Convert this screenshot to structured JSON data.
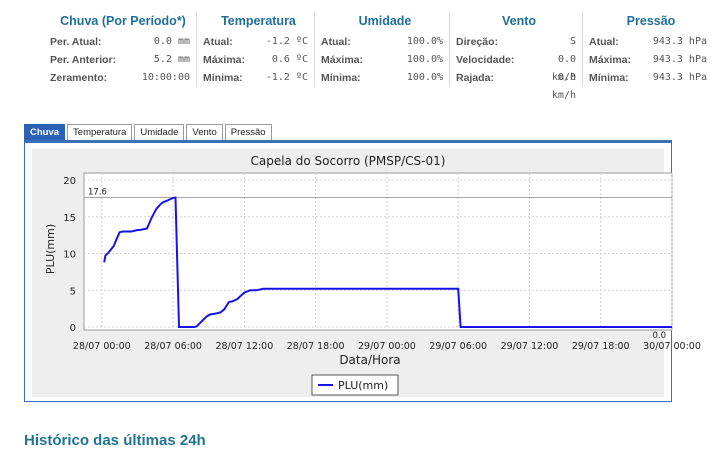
{
  "stats": [
    {
      "title": "Chuva (Por Período*)",
      "rows": [
        {
          "label": "Per. Atual:",
          "value": "0.0 mm"
        },
        {
          "label": "Per. Anterior:",
          "value": "5.2 mm"
        },
        {
          "label": "Zeramento:",
          "value": "10:00:00"
        }
      ]
    },
    {
      "title": "Temperatura",
      "rows": [
        {
          "label": "Atual:",
          "value": "-1.2 ºC"
        },
        {
          "label": "Máxima:",
          "value": "0.6 ºC"
        },
        {
          "label": "Mínima:",
          "value": "-1.2 ºC"
        }
      ]
    },
    {
      "title": "Umidade",
      "rows": [
        {
          "label": "Atual:",
          "value": "100.0%"
        },
        {
          "label": "Máxima:",
          "value": "100.0%"
        },
        {
          "label": "Mínima:",
          "value": "100.0%"
        }
      ]
    },
    {
      "title": "Vento",
      "rows": [
        {
          "label": "Direção:",
          "value": "S"
        },
        {
          "label": "Velocidade:",
          "value": "0.0 km/h"
        },
        {
          "label": "Rajada:",
          "value": "0.0 km/h"
        }
      ]
    },
    {
      "title": "Pressão",
      "rows": [
        {
          "label": "Atual:",
          "value": "943.3 hPa"
        },
        {
          "label": "Máxima:",
          "value": "943.3 hPa"
        },
        {
          "label": "Mínima:",
          "value": "943.3 hPa"
        }
      ]
    }
  ],
  "tabs": [
    "Chuva",
    "Temperatura",
    "Umidade",
    "Vento",
    "Pressão"
  ],
  "active_tab": "Chuva",
  "colors": {
    "accent": "#2a63b5",
    "series": "#1414e6",
    "heading": "#1f7590"
  },
  "chart_data": {
    "type": "line",
    "title": "Capela do Socorro (PMSP/CS-01)",
    "xlabel": "Data/Hora",
    "ylabel": "PLU(mm)",
    "ylim": [
      0,
      20
    ],
    "yticks": [
      0,
      5,
      10,
      15,
      20
    ],
    "xticks": [
      "28/07 00:00",
      "28/07 06:00",
      "28/07 12:00",
      "28/07 18:00",
      "29/07 00:00",
      "29/07 06:00",
      "29/07 12:00",
      "29/07 18:00",
      "30/07 00:00"
    ],
    "xlim_hours": [
      -1.5,
      48
    ],
    "annotations": [
      {
        "label": "17.6",
        "y": 17.6
      },
      {
        "label": "0.0",
        "y": 0
      }
    ],
    "legend": "bottom-center",
    "grid": true,
    "series": [
      {
        "name": "PLU(mm)",
        "x_hours": [
          0.2,
          0.3,
          0.6,
          1.0,
          1.2,
          1.5,
          1.8,
          2.0,
          2.5,
          3.0,
          3.2,
          3.8,
          4.2,
          4.6,
          5.0,
          5.2,
          5.5,
          5.9,
          6.1,
          6.2,
          6.5,
          7.5,
          7.8,
          8.0,
          8.3,
          8.8,
          9.1,
          9.5,
          10.0,
          10.3,
          10.7,
          11.0,
          11.4,
          11.6,
          12.0,
          12.5,
          13.0,
          13.6,
          14.5,
          30.0,
          30.2,
          31.0,
          40.0,
          48.0
        ],
        "values": [
          8.8,
          9.7,
          10.2,
          11.0,
          11.8,
          12.9,
          13.0,
          13.0,
          13.0,
          13.2,
          13.2,
          13.4,
          14.9,
          16.1,
          16.8,
          17.0,
          17.2,
          17.5,
          17.6,
          17.6,
          0.0,
          0.0,
          0.0,
          0.1,
          0.6,
          1.4,
          1.7,
          1.8,
          2.0,
          2.4,
          3.4,
          3.5,
          3.8,
          4.1,
          4.7,
          5.0,
          5.0,
          5.2,
          5.2,
          5.2,
          0.0,
          0.0,
          0.0,
          0.0
        ]
      }
    ]
  },
  "history_heading": "Histórico das últimas 24h"
}
